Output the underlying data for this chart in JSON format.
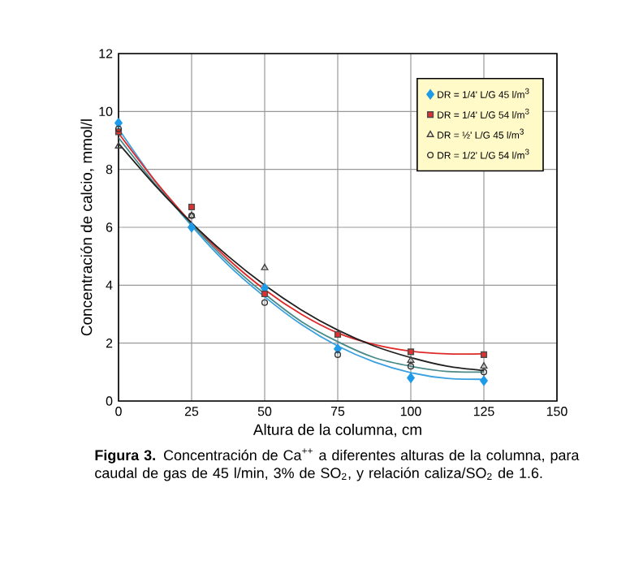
{
  "chart_data": {
    "type": "scatter",
    "xlabel": "Altura de la columna, cm",
    "ylabel": "Concentración de calcio, mmol/l",
    "xlim": [
      0,
      150
    ],
    "xticks": [
      0,
      25,
      50,
      75,
      100,
      125,
      150
    ],
    "ylim": [
      0,
      12
    ],
    "yticks": [
      0,
      2,
      4,
      6,
      8,
      10,
      12
    ],
    "grid": true,
    "legend": "top right",
    "annotations": [
      "**Figura 3.** Concentración de Ca$^{++}$ a diferentes alturas de la columna, para caudal de gas de 45 l/min, 3% de SO$_{2}$, y relación caliza/SO$_{2}$ de 1.6."
    ],
    "series": [
      {
        "type": "line",
        "color": "#3aa0e0",
        "marker": "none",
        "x": [
          0,
          12.5,
          25,
          37.5,
          50,
          62.5,
          75,
          87.5,
          100,
          112.5,
          125
        ],
        "values": [
          9.4,
          7.6,
          6.05,
          4.7,
          3.6,
          2.65,
          1.9,
          1.35,
          0.98,
          0.78,
          0.75
        ]
      },
      {
        "type": "line",
        "color": "#e02828",
        "marker": "none",
        "x": [
          0,
          12.5,
          25,
          37.5,
          50,
          62.5,
          75,
          87.5,
          100,
          112.5,
          125
        ],
        "values": [
          9.25,
          7.6,
          6.15,
          4.9,
          3.85,
          3.0,
          2.35,
          1.95,
          1.72,
          1.63,
          1.63
        ]
      },
      {
        "type": "line",
        "color": "#4a8a8a",
        "marker": "none",
        "x": [
          0,
          12.5,
          25,
          37.5,
          50,
          62.5,
          75,
          87.5,
          100,
          112.5,
          125
        ],
        "values": [
          9.1,
          7.5,
          6.1,
          4.8,
          3.7,
          2.75,
          2.05,
          1.5,
          1.2,
          1.02,
          1.0
        ]
      },
      {
        "type": "line",
        "color": "#202020",
        "marker": "none",
        "x": [
          0,
          12.5,
          25,
          37.5,
          50,
          62.5,
          75,
          87.5,
          100,
          112.5,
          125
        ],
        "values": [
          8.9,
          7.45,
          6.15,
          5.0,
          4.0,
          3.15,
          2.45,
          1.9,
          1.5,
          1.2,
          1.05
        ]
      },
      {
        "name": "DR = 1/4' L/G 45 l/m$^{3}$",
        "color": "#1e9be8",
        "marker": "diamond",
        "x": [
          0,
          25,
          50,
          75,
          100,
          125
        ],
        "values": [
          9.6,
          6.0,
          3.9,
          1.8,
          0.8,
          0.7
        ]
      },
      {
        "name": "DR = 1/4' L/G 54 l/m$^{3}$",
        "color": "#e03030",
        "marker": "square",
        "x": [
          0,
          25,
          50,
          75,
          100,
          125
        ],
        "values": [
          9.3,
          6.7,
          3.7,
          2.3,
          1.7,
          1.6
        ]
      },
      {
        "name": "DR = ½' L/G 45 l/m$^{3}$",
        "color": "#404040",
        "marker": "triangle",
        "x": [
          0,
          25,
          50,
          75,
          100,
          125
        ],
        "values": [
          8.8,
          6.4,
          4.6,
          null,
          1.4,
          1.2
        ]
      },
      {
        "name": "DR = 1/2' L/G 54 l/m$^{3}$",
        "color": "#303030",
        "marker": "circle",
        "x": [
          0,
          25,
          50,
          75,
          100,
          125
        ],
        "values": [
          9.4,
          6.4,
          3.4,
          1.6,
          1.2,
          1.0
        ]
      }
    ]
  }
}
